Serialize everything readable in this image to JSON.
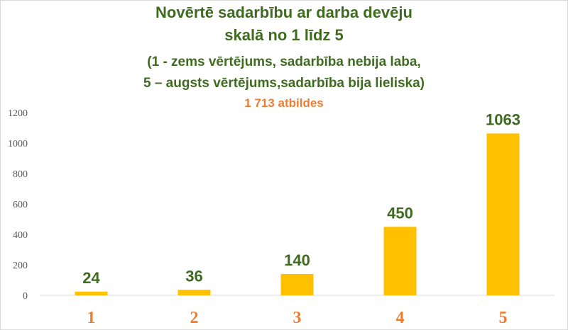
{
  "colors": {
    "title": "#3f6b20",
    "subtitle_count": "#ed7d31",
    "bar": "#ffc000",
    "category_label": "#ed7d31",
    "data_label": "#3f6b20",
    "gridline": "#d9d9d9"
  },
  "chart_data": {
    "type": "bar",
    "title_lines": [
      "Novērtē sadarbību ar darba devēju",
      "skalā no 1 līdz 5",
      "(1 - zems vērtējums, sadarbība nebija laba,",
      "5 – augsts vērtējums,sadarbība bija lieliska)"
    ],
    "subtitle": "1 713 atbildes",
    "categories": [
      "1",
      "2",
      "3",
      "4",
      "5"
    ],
    "values": [
      24,
      36,
      140,
      450,
      1063
    ],
    "ylim": [
      0,
      1200
    ],
    "yticks": [
      0,
      200,
      400,
      600,
      800,
      1000,
      1200
    ],
    "grid": false,
    "legend": "none"
  }
}
